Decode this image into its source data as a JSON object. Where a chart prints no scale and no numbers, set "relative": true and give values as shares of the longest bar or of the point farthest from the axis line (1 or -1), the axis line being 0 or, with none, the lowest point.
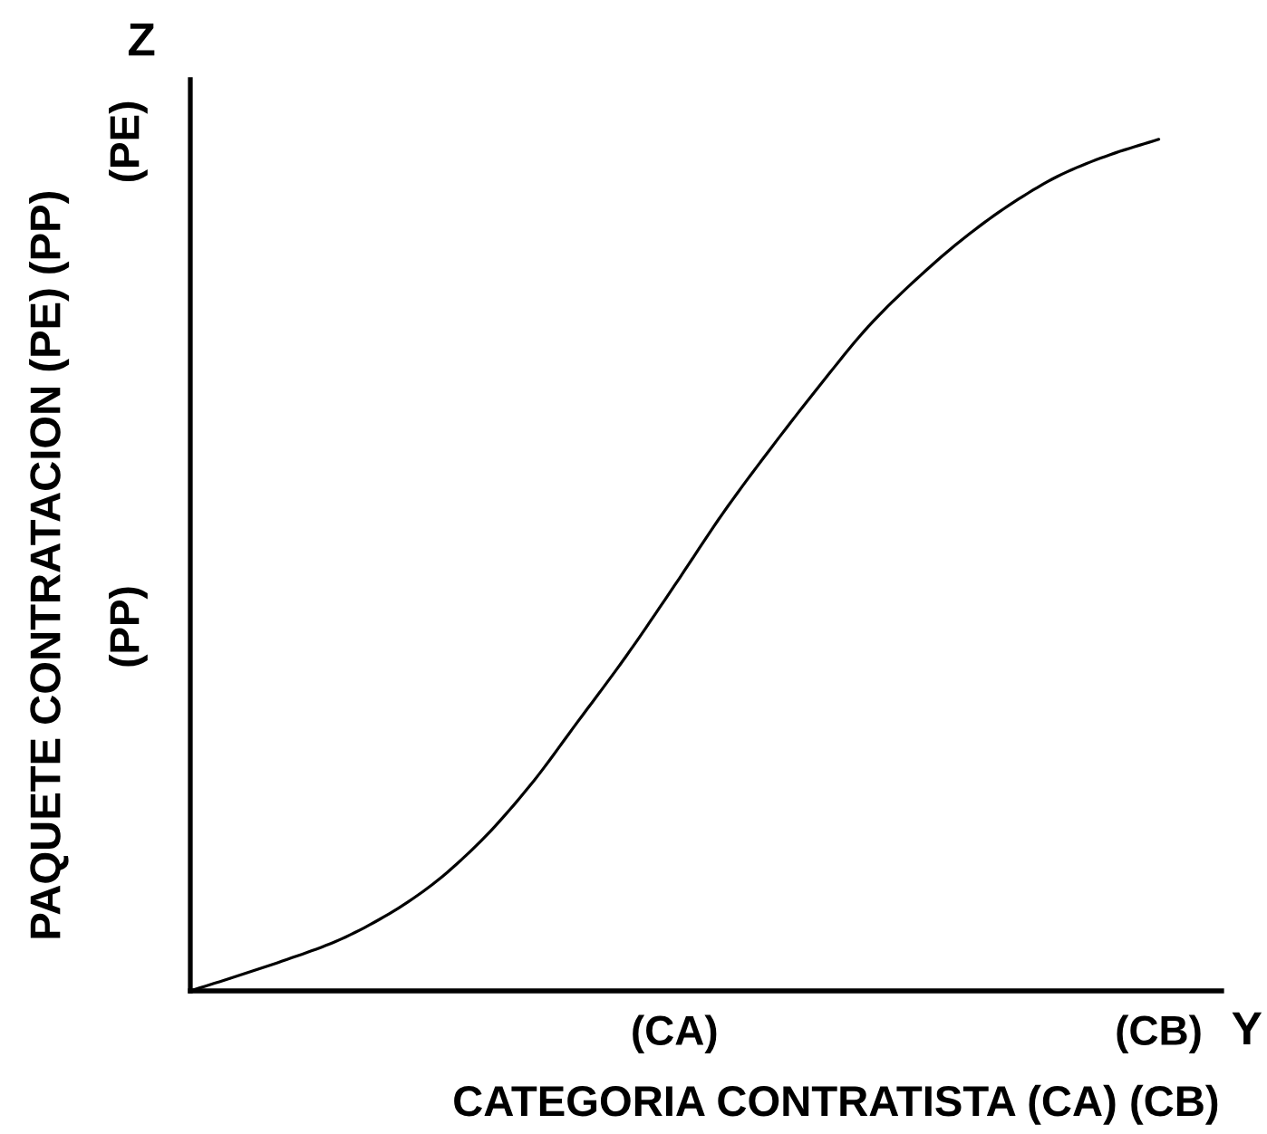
{
  "chart_data": {
    "type": "line",
    "relative": true,
    "xlabel": "CATEGORIA CONTRATISTA (CA) (CB)",
    "ylabel": "PAQUETE CONTRATACION (PE) (PP)",
    "annotations": [
      "Z",
      "Y",
      "(PP)",
      "(PE)"
    ],
    "categories": [
      null,
      null,
      null,
      null,
      null,
      null,
      null,
      null,
      null,
      null,
      "(CA)",
      null,
      null,
      null,
      null,
      null,
      null,
      null,
      null,
      null,
      "(CB)"
    ],
    "series": [
      {
        "color": "#000000",
        "values": [
          0,
          0.018,
          0.037,
          0.058,
          0.087,
          0.125,
          0.176,
          0.24,
          0.316,
          0.393,
          0.476,
          0.561,
          0.638,
          0.711,
          0.78,
          0.836,
          0.885,
          0.926,
          0.959,
          0.982,
          1.0
        ]
      }
    ]
  }
}
